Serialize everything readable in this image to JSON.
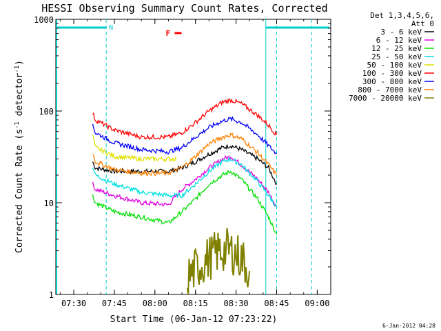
{
  "chart_data": {
    "type": "line",
    "title": "HESSI Observing Summary Count Rates, Corrected",
    "xlabel": "Start Time (06-Jan-12 07:23:22)",
    "ylabel_main": "Corrected Count Rate (s",
    "ylabel_sup1": "-1",
    "ylabel_mid": " detector",
    "ylabel_sup2": "-1",
    "ylabel_end": ")",
    "yscale": "log",
    "ylim": [
      1,
      1000
    ],
    "xlim": [
      "07:23:22",
      "09:05:00"
    ],
    "xticks": [
      "07:30",
      "07:45",
      "08:00",
      "08:15",
      "08:30",
      "08:45",
      "09:00"
    ],
    "yticks": [
      "1",
      "10",
      "100",
      "1000"
    ],
    "legend_header": [
      "Det 1,3,4,5,6,",
      "Att 0"
    ],
    "legend_placement": "right",
    "series": [
      {
        "name": "3 - 6 keV",
        "color": "#000000",
        "x": [
          "07:37",
          "07:38",
          "07:45",
          "07:55",
          "08:05",
          "08:10",
          "08:15",
          "08:20",
          "08:25",
          "08:28",
          "08:32",
          "08:38",
          "08:42",
          "08:45"
        ],
        "values": [
          28,
          24,
          22,
          22,
          22,
          24,
          28,
          34,
          40,
          42,
          38,
          30,
          24,
          16
        ]
      },
      {
        "name": "6 - 12 keV",
        "color": "#e000e0",
        "x": [
          "07:37",
          "07:38",
          "07:45",
          "07:55",
          "08:05",
          "08:10",
          "08:15",
          "08:20",
          "08:25",
          "08:28",
          "08:32",
          "08:38",
          "08:42",
          "08:45"
        ],
        "values": [
          16,
          14,
          12,
          10,
          9.5,
          14,
          18,
          24,
          30,
          32,
          26,
          18,
          13,
          9
        ]
      },
      {
        "name": "12 - 25 keV",
        "color": "#00e000",
        "x": [
          "07:37",
          "07:38",
          "07:45",
          "07:55",
          "08:05",
          "08:10",
          "08:15",
          "08:20",
          "08:25",
          "08:28",
          "08:32",
          "08:38",
          "08:42",
          "08:45"
        ],
        "values": [
          12,
          10,
          8,
          7,
          6,
          8,
          11,
          16,
          20,
          22,
          18,
          11,
          7,
          4.5
        ]
      },
      {
        "name": "25 - 50 keV",
        "color": "#00e0e0",
        "x": [
          "07:37",
          "07:38",
          "07:45",
          "07:55",
          "08:05",
          "08:10",
          "08:15",
          "08:20",
          "08:25",
          "08:28",
          "08:32",
          "08:38",
          "08:42",
          "08:45"
        ],
        "values": [
          25,
          20,
          16,
          13,
          12,
          12,
          16,
          22,
          28,
          30,
          26,
          17,
          12,
          9
        ]
      },
      {
        "name": "50 - 100 keV",
        "color": "#e0e000",
        "x": [
          "07:37",
          "07:38",
          "07:45",
          "07:55",
          "08:05",
          "08:08"
        ],
        "values": [
          55,
          40,
          32,
          30,
          30,
          30
        ]
      },
      {
        "name": "100 - 300 keV",
        "color": "#ff0000",
        "x": [
          "07:37",
          "07:38",
          "07:45",
          "07:55",
          "08:05",
          "08:10",
          "08:15",
          "08:20",
          "08:25",
          "08:28",
          "08:32",
          "08:38",
          "08:42",
          "08:45"
        ],
        "values": [
          95,
          80,
          62,
          52,
          52,
          58,
          75,
          100,
          125,
          132,
          120,
          90,
          70,
          55
        ]
      },
      {
        "name": "300 - 800 keV",
        "color": "#0000ff",
        "x": [
          "07:37",
          "07:38",
          "07:45",
          "07:55",
          "08:05",
          "08:10",
          "08:15",
          "08:20",
          "08:25",
          "08:28",
          "08:32",
          "08:38",
          "08:42",
          "08:45"
        ],
        "values": [
          72,
          58,
          45,
          38,
          36,
          40,
          52,
          66,
          78,
          82,
          75,
          55,
          42,
          34
        ]
      },
      {
        "name": "800 - 7000 keV",
        "color": "#ff8000",
        "x": [
          "07:37",
          "07:38",
          "07:45",
          "07:55",
          "08:05",
          "08:10",
          "08:15",
          "08:20",
          "08:25",
          "08:28",
          "08:32",
          "08:38",
          "08:42",
          "08:45"
        ],
        "values": [
          35,
          28,
          23,
          21,
          21,
          24,
          32,
          44,
          52,
          55,
          50,
          35,
          26,
          20
        ]
      },
      {
        "name": "7000 - 20000 keV",
        "color": "#808000",
        "x": [
          "08:12",
          "08:16",
          "08:20",
          "08:24",
          "08:28",
          "08:32",
          "08:35"
        ],
        "values": [
          1.5,
          2,
          2.5,
          3,
          3,
          2.5,
          1.8
        ]
      }
    ],
    "annotations": [
      {
        "label": "N",
        "color": "#00cccc"
      },
      {
        "label": "F",
        "color": "#ff0000"
      }
    ],
    "night_bars_color": "#00cccc",
    "footer": "6-Jan-2012 04:28"
  }
}
